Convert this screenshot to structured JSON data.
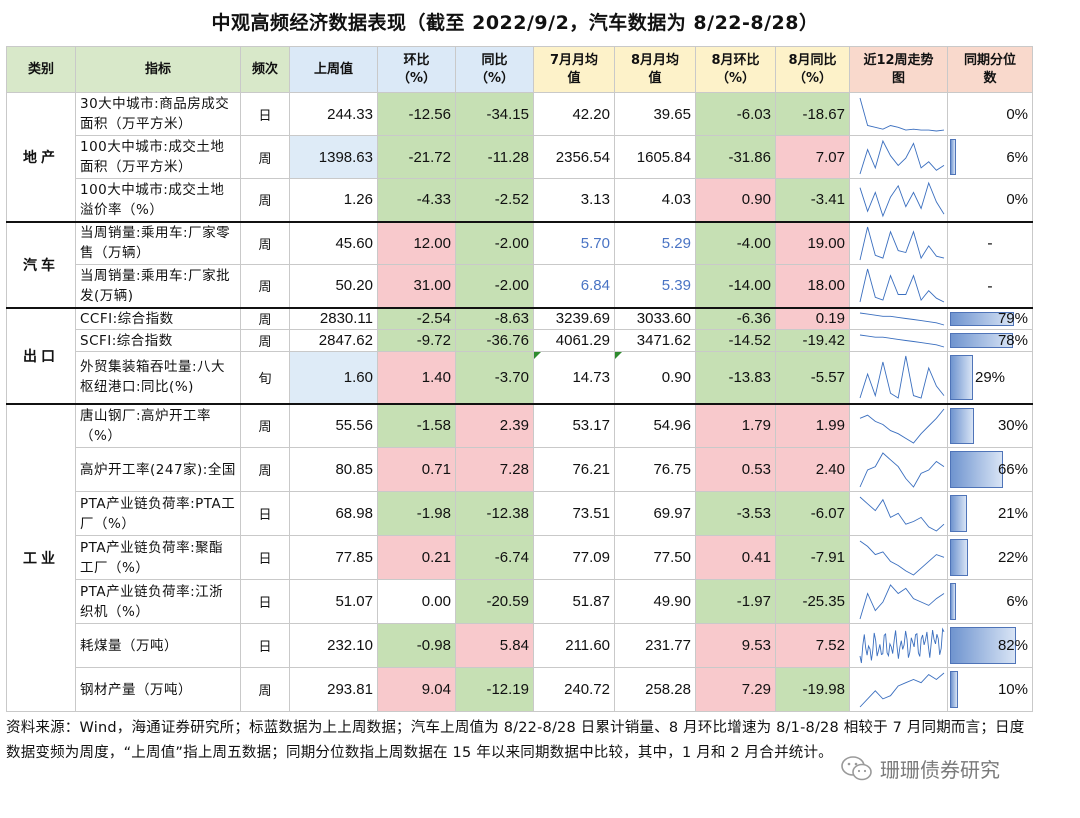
{
  "title": "中观高频经济数据表现（截至 2022/9/2，汽车数据为 8/22-8/28）",
  "headers": {
    "category": "类别",
    "indicator": "指标",
    "frequency": "频次",
    "last_week": "上周值",
    "wow_line1": "环比",
    "wow_line2": "（%）",
    "yoy_line1": "同比",
    "yoy_line2": "（%）",
    "jul_avg_line1": "7月月均",
    "jul_avg_line2": "值",
    "aug_avg_line1": "8月月均",
    "aug_avg_line2": "值",
    "aug_mom_line1": "8月环比",
    "aug_mom_line2": "（%）",
    "aug_yoy_line1": "8月同比",
    "aug_yoy_line2": "（%）",
    "trend_line1": "近12周走势",
    "trend_line2": "图",
    "pct_line1": "同期分位",
    "pct_line2": "数"
  },
  "categories": {
    "property": "地产",
    "auto": "汽车",
    "export": "出口",
    "industry": "工业"
  },
  "rows": [
    {
      "indicator": "30大中城市:商品房成交面积（万平方米）",
      "freq": "日",
      "last": "244.33",
      "wow": "-12.56",
      "yoy": "-34.15",
      "jul": "42.20",
      "aug": "39.65",
      "mom": "-6.03",
      "augyoy": "-18.67",
      "pct": "0%",
      "pct_value": 0
    },
    {
      "indicator": "100大中城市:成交土地面积（万平方米）",
      "freq": "周",
      "last": "1398.63",
      "wow": "-21.72",
      "yoy": "-11.28",
      "jul": "2356.54",
      "aug": "1605.84",
      "mom": "-31.86",
      "augyoy": "7.07",
      "pct": "6%",
      "pct_value": 6
    },
    {
      "indicator": "100大中城市:成交土地溢价率（%）",
      "freq": "周",
      "last": "1.26",
      "wow": "-4.33",
      "yoy": "-2.52",
      "jul": "3.13",
      "aug": "4.03",
      "mom": "0.90",
      "augyoy": "-3.41",
      "pct": "0%",
      "pct_value": 0
    },
    {
      "indicator": "当周销量:乘用车:厂家零售（万辆）",
      "freq": "周",
      "last": "45.60",
      "wow": "12.00",
      "yoy": "-2.00",
      "jul": "5.70",
      "aug": "5.29",
      "mom": "-4.00",
      "augyoy": "19.00",
      "pct": "-",
      "pct_value": null
    },
    {
      "indicator": "当周销量:乘用车:厂家批发(万辆)",
      "freq": "周",
      "last": "50.20",
      "wow": "31.00",
      "yoy": "-2.00",
      "jul": "6.84",
      "aug": "5.39",
      "mom": "-14.00",
      "augyoy": "18.00",
      "pct": "-",
      "pct_value": null
    },
    {
      "indicator": "CCFI:综合指数",
      "freq": "周",
      "last": "2830.11",
      "wow": "-2.54",
      "yoy": "-8.63",
      "jul": "3239.69",
      "aug": "3033.60",
      "mom": "-6.36",
      "augyoy": "0.19",
      "pct": "79%",
      "pct_value": 79
    },
    {
      "indicator": "SCFI:综合指数",
      "freq": "周",
      "last": "2847.62",
      "wow": "-9.72",
      "yoy": "-36.76",
      "jul": "4061.29",
      "aug": "3471.62",
      "mom": "-14.52",
      "augyoy": "-19.42",
      "pct": "78%",
      "pct_value": 78
    },
    {
      "indicator": "外贸集装箱吞吐量:八大枢纽港口:同比(%)",
      "freq": "旬",
      "last": "1.60",
      "wow": "1.40",
      "yoy": "-3.70",
      "jul": "14.73",
      "aug": "0.90",
      "mom": "-13.83",
      "augyoy": "-5.57",
      "pct": "29%",
      "pct_value": 29
    },
    {
      "indicator": "唐山钢厂:高炉开工率（%）",
      "freq": "周",
      "last": "55.56",
      "wow": "-1.58",
      "yoy": "2.39",
      "jul": "53.17",
      "aug": "54.96",
      "mom": "1.79",
      "augyoy": "1.99",
      "pct": "30%",
      "pct_value": 30
    },
    {
      "indicator": "高炉开工率(247家):全国",
      "freq": "周",
      "last": "80.85",
      "wow": "0.71",
      "yoy": "7.28",
      "jul": "76.21",
      "aug": "76.75",
      "mom": "0.53",
      "augyoy": "2.40",
      "pct": "66%",
      "pct_value": 66
    },
    {
      "indicator": "PTA产业链负荷率:PTA工厂（%）",
      "freq": "日",
      "last": "68.98",
      "wow": "-1.98",
      "yoy": "-12.38",
      "jul": "73.51",
      "aug": "69.97",
      "mom": "-3.53",
      "augyoy": "-6.07",
      "pct": "21%",
      "pct_value": 21
    },
    {
      "indicator": "PTA产业链负荷率:聚酯工厂（%）",
      "freq": "日",
      "last": "77.85",
      "wow": "0.21",
      "yoy": "-6.74",
      "jul": "77.09",
      "aug": "77.50",
      "mom": "0.41",
      "augyoy": "-7.91",
      "pct": "22%",
      "pct_value": 22
    },
    {
      "indicator": "PTA产业链负荷率:江浙织机（%）",
      "freq": "日",
      "last": "51.07",
      "wow": "0.00",
      "yoy": "-20.59",
      "jul": "51.87",
      "aug": "49.90",
      "mom": "-1.97",
      "augyoy": "-25.35",
      "pct": "6%",
      "pct_value": 6
    },
    {
      "indicator": "耗煤量（万吨）",
      "freq": "日",
      "last": "232.10",
      "wow": "-0.98",
      "yoy": "5.84",
      "jul": "211.60",
      "aug": "231.77",
      "mom": "9.53",
      "augyoy": "7.52",
      "pct": "82%",
      "pct_value": 82
    },
    {
      "indicator": "钢材产量（万吨）",
      "freq": "周",
      "last": "293.81",
      "wow": "9.04",
      "yoy": "-12.19",
      "jul": "240.72",
      "aug": "258.28",
      "mom": "7.29",
      "augyoy": "-19.98",
      "pct": "10%",
      "pct_value": 10
    }
  ],
  "note": "资料来源：Wind，海通证券研究所；标蓝数据为上上周数据；汽车上周值为 8/22-8/28 日累计销量、8 月环比增速为 8/1-8/28 相较于 7 月同期而言；日度数据变频为周度，“上周值”指上周五数据；同期分位数指上周数据在 15 年以来同期数据中比较，其中，1 月和 2 月合并统计。",
  "watermark": "珊珊债券研究",
  "colors": {
    "positive_bg": "#f8c9cc",
    "negative_bg": "#c6e0b4",
    "blue_value": "#4a74c4",
    "pct_bar": "#6f94cf"
  }
}
